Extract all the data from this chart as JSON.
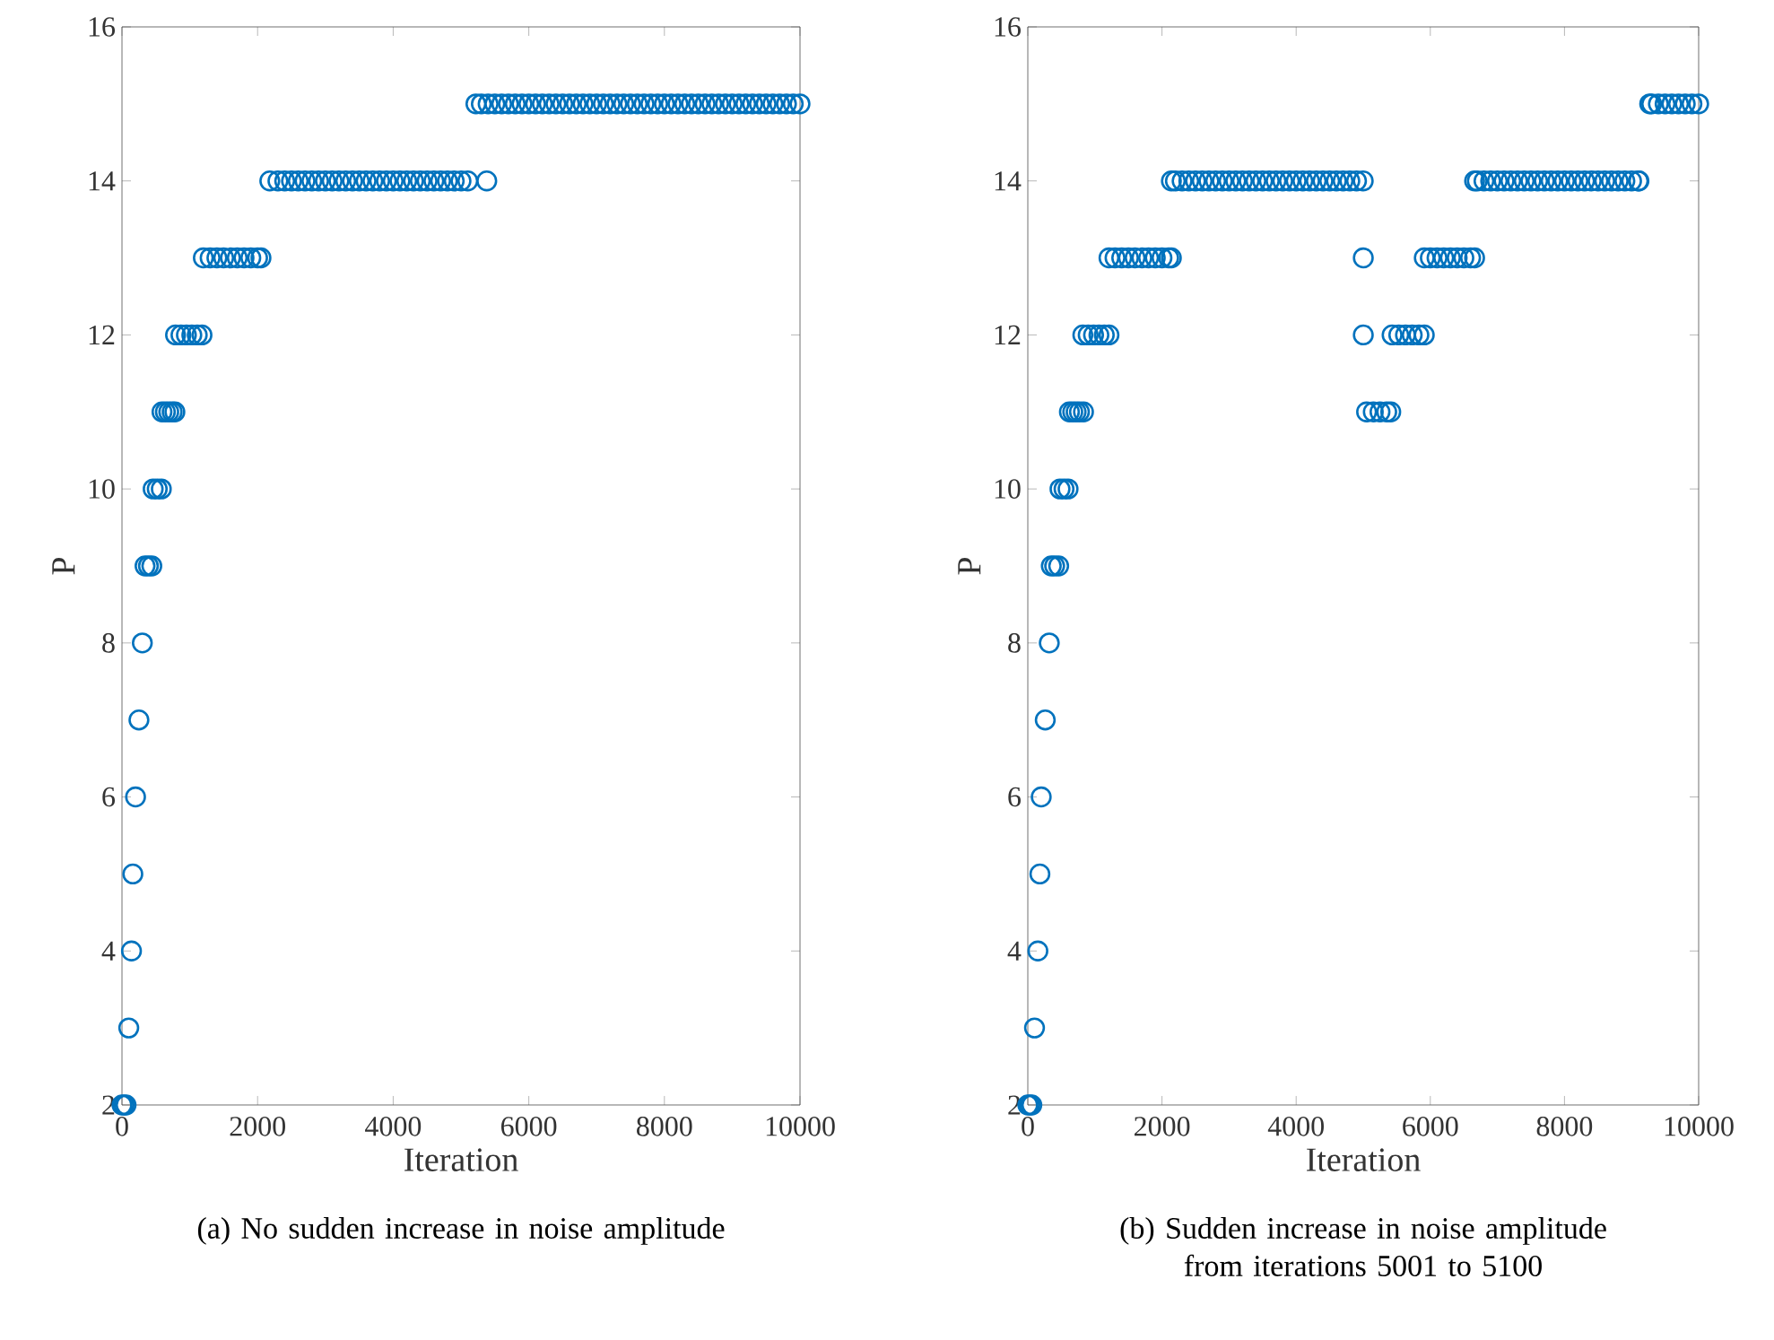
{
  "chart_data": [
    {
      "type": "scatter",
      "xlabel": "Iteration",
      "ylabel": "P",
      "marker": "circle",
      "color": "#0072bd",
      "xlim": [
        0,
        10000
      ],
      "ylim": [
        2,
        16
      ],
      "xticks": [
        0,
        2000,
        4000,
        6000,
        8000,
        10000
      ],
      "yticks": [
        2,
        4,
        6,
        8,
        10,
        12,
        14,
        16
      ],
      "annotations": [
        "(a)   No sudden increase in noise amplitude"
      ],
      "x": [
        0,
        30,
        60,
        100,
        140,
        160,
        200,
        250,
        300,
        340,
        390,
        440,
        460,
        520,
        580,
        590,
        640,
        690,
        740,
        780,
        790,
        870,
        950,
        1030,
        1110,
        1180,
        1200,
        1300,
        1400,
        1500,
        1600,
        1700,
        1800,
        1900,
        2000,
        2050,
        2180,
        2300,
        2400,
        2500,
        2600,
        2700,
        2800,
        2900,
        3000,
        3100,
        3200,
        3300,
        3400,
        3500,
        3600,
        3700,
        3800,
        3900,
        4000,
        4100,
        4200,
        4300,
        4400,
        4500,
        4600,
        4700,
        4800,
        4900,
        5000,
        5100,
        5380,
        5220,
        5300,
        5400,
        5500,
        5600,
        5700,
        5800,
        5900,
        6000,
        6100,
        6200,
        6300,
        6400,
        6500,
        6600,
        6700,
        6800,
        6900,
        7000,
        7100,
        7200,
        7300,
        7400,
        7500,
        7600,
        7700,
        7800,
        7900,
        8000,
        8100,
        8200,
        8300,
        8400,
        8500,
        8600,
        8700,
        8800,
        8900,
        9000,
        9100,
        9200,
        9300,
        9400,
        9500,
        9600,
        9700,
        9800,
        9900,
        10000
      ],
      "values": [
        2,
        2,
        2,
        3,
        4,
        5,
        6,
        7,
        8,
        9,
        9,
        9,
        10,
        10,
        10,
        11,
        11,
        11,
        11,
        11,
        12,
        12,
        12,
        12,
        12,
        12,
        13,
        13,
        13,
        13,
        13,
        13,
        13,
        13,
        13,
        13,
        14,
        14,
        14,
        14,
        14,
        14,
        14,
        14,
        14,
        14,
        14,
        14,
        14,
        14,
        14,
        14,
        14,
        14,
        14,
        14,
        14,
        14,
        14,
        14,
        14,
        14,
        14,
        14,
        14,
        14,
        14,
        15,
        15,
        15,
        15,
        15,
        15,
        15,
        15,
        15,
        15,
        15,
        15,
        15,
        15,
        15,
        15,
        15,
        15,
        15,
        15,
        15,
        15,
        15,
        15,
        15,
        15,
        15,
        15,
        15,
        15,
        15,
        15,
        15,
        15,
        15,
        15,
        15,
        15,
        15,
        15,
        15,
        15,
        15,
        15,
        15,
        15,
        15,
        15,
        15
      ]
    },
    {
      "type": "scatter",
      "xlabel": "Iteration",
      "ylabel": "P",
      "marker": "circle",
      "color": "#0072bd",
      "xlim": [
        0,
        10000
      ],
      "ylim": [
        2,
        16
      ],
      "xticks": [
        0,
        2000,
        4000,
        6000,
        8000,
        10000
      ],
      "yticks": [
        2,
        4,
        6,
        8,
        10,
        12,
        14,
        16
      ],
      "annotations": [
        "(b)   Sudden increase in noise amplitude from iterations 5001 to 5100"
      ],
      "x": [
        0,
        30,
        60,
        100,
        150,
        180,
        200,
        260,
        320,
        350,
        400,
        460,
        480,
        540,
        600,
        620,
        670,
        720,
        770,
        830,
        820,
        900,
        980,
        1060,
        1140,
        1210,
        1210,
        1300,
        1400,
        1500,
        1600,
        1700,
        1800,
        1900,
        2000,
        2100,
        2140,
        2140,
        2200,
        2300,
        2400,
        2500,
        2600,
        2700,
        2800,
        2900,
        3000,
        3100,
        3200,
        3300,
        3400,
        3500,
        3600,
        3700,
        3800,
        3900,
        4000,
        4100,
        4200,
        4300,
        4400,
        4500,
        4600,
        4700,
        4800,
        4900,
        5000,
        5001,
        5001,
        5050,
        5150,
        5250,
        5350,
        5410,
        5430,
        5530,
        5630,
        5730,
        5830,
        5910,
        5910,
        6000,
        6100,
        6200,
        6300,
        6400,
        6500,
        6600,
        6660,
        6660,
        6700,
        6800,
        6900,
        7000,
        7100,
        7200,
        7300,
        7400,
        7500,
        7600,
        7700,
        7800,
        7900,
        8000,
        8100,
        8200,
        8300,
        8400,
        8500,
        8600,
        8700,
        8800,
        8900,
        9000,
        9100,
        9110,
        9270,
        9300,
        9400,
        9500,
        9600,
        9700,
        9800,
        9900,
        10000
      ],
      "values": [
        2,
        2,
        2,
        3,
        4,
        5,
        6,
        7,
        8,
        9,
        9,
        9,
        10,
        10,
        10,
        11,
        11,
        11,
        11,
        11,
        12,
        12,
        12,
        12,
        12,
        12,
        13,
        13,
        13,
        13,
        13,
        13,
        13,
        13,
        13,
        13,
        13,
        14,
        14,
        14,
        14,
        14,
        14,
        14,
        14,
        14,
        14,
        14,
        14,
        14,
        14,
        14,
        14,
        14,
        14,
        14,
        14,
        14,
        14,
        14,
        14,
        14,
        14,
        14,
        14,
        14,
        14,
        13,
        12,
        11,
        11,
        11,
        11,
        11,
        12,
        12,
        12,
        12,
        12,
        12,
        13,
        13,
        13,
        13,
        13,
        13,
        13,
        13,
        13,
        14,
        14,
        14,
        14,
        14,
        14,
        14,
        14,
        14,
        14,
        14,
        14,
        14,
        14,
        14,
        14,
        14,
        14,
        14,
        14,
        14,
        14,
        14,
        14,
        14,
        14,
        14,
        15,
        15,
        15,
        15,
        15,
        15,
        15,
        15,
        15
      ]
    }
  ]
}
